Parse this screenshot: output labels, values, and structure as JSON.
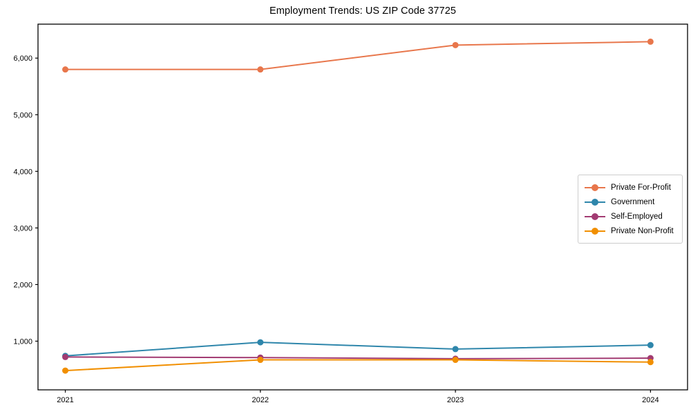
{
  "title": "Employment Trends: US ZIP Code 37725",
  "chart_data": {
    "type": "line",
    "title": "Employment Trends: US ZIP Code 37725",
    "x": [
      2021,
      2022,
      2023,
      2024
    ],
    "xtick_labels": [
      "2021",
      "2022",
      "2023",
      "2024"
    ],
    "yticks": [
      1000,
      2000,
      3000,
      4000,
      5000,
      6000
    ],
    "ytick_labels": [
      "1,000",
      "2,000",
      "3,000",
      "4,000",
      "5,000",
      "6,000"
    ],
    "xlim": [
      2020.86,
      2024.19
    ],
    "ylim": [
      140,
      6600
    ],
    "grid": false,
    "legend_position": "center-right",
    "series": [
      {
        "name": "Private For-Profit",
        "color": "#e8764b",
        "values": [
          5800,
          5800,
          6230,
          6290
        ]
      },
      {
        "name": "Government",
        "color": "#2e86ab",
        "values": [
          740,
          980,
          860,
          930
        ]
      },
      {
        "name": "Self-Employed",
        "color": "#a23b72",
        "values": [
          720,
          710,
          690,
          700
        ]
      },
      {
        "name": "Private Non-Profit",
        "color": "#f18f01",
        "values": [
          480,
          670,
          670,
          630
        ]
      }
    ],
    "axis_color": "#000000",
    "tick_font_size": 11,
    "marker_radius": 4.5,
    "line_width": 2
  }
}
